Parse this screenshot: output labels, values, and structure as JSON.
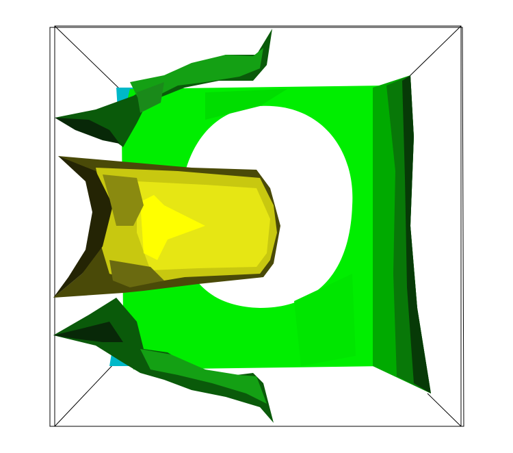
{
  "scene": {
    "colors": {
      "background": "#ffffff",
      "frame": "#000000",
      "green_bright": "#00ff00",
      "green_mid": "#00c800",
      "green_dark": "#0a6a0a",
      "green_darker": "#0a3a0a",
      "yellow_bright": "#ffff00",
      "yellow_mid": "#d8d810",
      "yellow_dark": "#6a6a10",
      "cyan": "#00b8c8"
    }
  }
}
